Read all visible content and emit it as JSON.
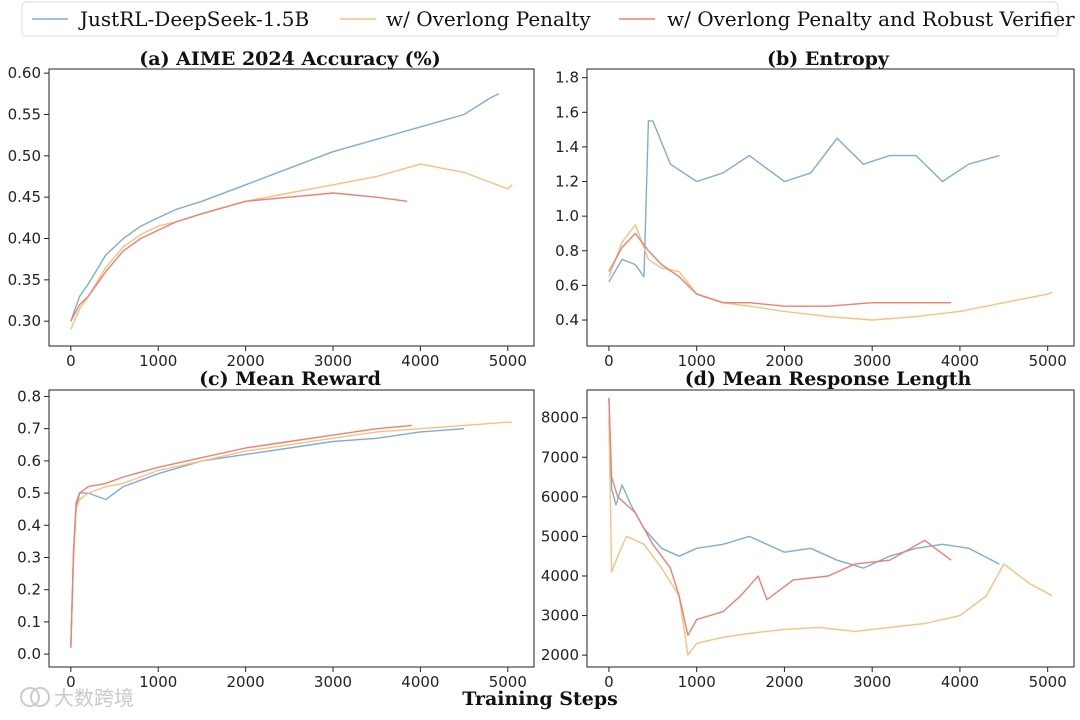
{
  "legend": {
    "items": [
      {
        "label": "JustRL-DeepSeek-1.5B",
        "color": "#7fadd6"
      },
      {
        "label": "w/ Overlong Penalty",
        "color": "#f9c07f"
      },
      {
        "label": "w/ Overlong Penalty and Robust Verifier",
        "color": "#ef7f73"
      }
    ]
  },
  "xlabel": "Training Steps",
  "watermark": "大数跨境",
  "chart_data": [
    {
      "type": "line",
      "title": "(a) AIME 2024 Accuracy (%)",
      "xlim": [
        -250,
        5300
      ],
      "ylim": [
        0.27,
        0.605
      ],
      "xticks": [
        0,
        1000,
        2000,
        3000,
        4000,
        5000
      ],
      "xticklabels": [
        "0",
        "1000",
        "2000",
        "3000",
        "4000",
        "5000"
      ],
      "yticks": [
        0.3,
        0.35,
        0.4,
        0.45,
        0.5,
        0.55,
        0.6
      ],
      "yticklabels": [
        "0.30",
        "0.35",
        "0.40",
        "0.45",
        "0.50",
        "0.55",
        "0.60"
      ],
      "series": [
        {
          "name": "JustRL-DeepSeek-1.5B",
          "x": [
            0,
            100,
            200,
            400,
            600,
            800,
            1000,
            1200,
            1500,
            2000,
            2500,
            3000,
            3500,
            4000,
            4500,
            4800,
            4900
          ],
          "y": [
            0.3,
            0.33,
            0.345,
            0.38,
            0.4,
            0.415,
            0.425,
            0.435,
            0.445,
            0.465,
            0.485,
            0.505,
            0.52,
            0.535,
            0.55,
            0.57,
            0.575
          ]
        },
        {
          "name": "w/ Overlong Penalty",
          "x": [
            0,
            100,
            200,
            400,
            600,
            800,
            1000,
            1200,
            1500,
            2000,
            2500,
            3000,
            3500,
            4000,
            4500,
            5000,
            5050
          ],
          "y": [
            0.29,
            0.315,
            0.33,
            0.365,
            0.39,
            0.405,
            0.415,
            0.42,
            0.43,
            0.445,
            0.455,
            0.465,
            0.475,
            0.49,
            0.48,
            0.46,
            0.465
          ]
        },
        {
          "name": "w/ Overlong Penalty and Robust Verifier",
          "x": [
            0,
            100,
            200,
            400,
            600,
            800,
            1000,
            1200,
            1500,
            2000,
            2500,
            3000,
            3500,
            3850
          ],
          "y": [
            0.3,
            0.32,
            0.33,
            0.36,
            0.385,
            0.4,
            0.41,
            0.42,
            0.43,
            0.445,
            0.45,
            0.455,
            0.45,
            0.445
          ]
        }
      ]
    },
    {
      "type": "line",
      "title": "(b) Entropy",
      "xlim": [
        -250,
        5300
      ],
      "ylim": [
        0.25,
        1.85
      ],
      "xticks": [
        0,
        1000,
        2000,
        3000,
        4000,
        5000
      ],
      "xticklabels": [
        "0",
        "1000",
        "2000",
        "3000",
        "4000",
        "5000"
      ],
      "yticks": [
        0.4,
        0.6,
        0.8,
        1.0,
        1.2,
        1.4,
        1.6,
        1.8
      ],
      "yticklabels": [
        "0.4",
        "0.6",
        "0.8",
        "1.0",
        "1.2",
        "1.4",
        "1.6",
        "1.8"
      ],
      "series": [
        {
          "name": "JustRL-DeepSeek-1.5B",
          "x": [
            0,
            150,
            300,
            400,
            450,
            500,
            700,
            1000,
            1300,
            1600,
            2000,
            2300,
            2600,
            2900,
            3200,
            3500,
            3800,
            4100,
            4450
          ],
          "y": [
            0.62,
            0.75,
            0.72,
            0.65,
            1.55,
            1.55,
            1.3,
            1.2,
            1.25,
            1.35,
            1.2,
            1.25,
            1.45,
            1.3,
            1.35,
            1.35,
            1.2,
            1.3,
            1.35
          ]
        },
        {
          "name": "w/ Overlong Penalty",
          "x": [
            0,
            150,
            300,
            450,
            600,
            800,
            1000,
            1300,
            1600,
            2000,
            2500,
            3000,
            3500,
            4000,
            4500,
            5000,
            5050
          ],
          "y": [
            0.65,
            0.85,
            0.95,
            0.75,
            0.7,
            0.68,
            0.55,
            0.5,
            0.48,
            0.45,
            0.42,
            0.4,
            0.42,
            0.45,
            0.5,
            0.55,
            0.56
          ]
        },
        {
          "name": "w/ Overlong Penalty and Robust Verifier",
          "x": [
            0,
            150,
            300,
            450,
            600,
            800,
            1000,
            1300,
            1600,
            2000,
            2500,
            3000,
            3500,
            3900
          ],
          "y": [
            0.68,
            0.82,
            0.9,
            0.8,
            0.72,
            0.65,
            0.55,
            0.5,
            0.5,
            0.48,
            0.48,
            0.5,
            0.5,
            0.5
          ]
        }
      ]
    },
    {
      "type": "line",
      "title": "(c) Mean Reward",
      "xlim": [
        -250,
        5300
      ],
      "ylim": [
        -0.04,
        0.82
      ],
      "xticks": [
        0,
        1000,
        2000,
        3000,
        4000,
        5000
      ],
      "xticklabels": [
        "0",
        "1000",
        "2000",
        "3000",
        "4000",
        "5000"
      ],
      "yticks": [
        0.0,
        0.1,
        0.2,
        0.3,
        0.4,
        0.5,
        0.6,
        0.7,
        0.8
      ],
      "yticklabels": [
        "0.0",
        "0.1",
        "0.2",
        "0.3",
        "0.4",
        "0.5",
        "0.6",
        "0.7",
        "0.8"
      ],
      "series": [
        {
          "name": "JustRL-DeepSeek-1.5B",
          "x": [
            0,
            30,
            60,
            100,
            200,
            400,
            600,
            1000,
            1500,
            2000,
            2500,
            3000,
            3500,
            4000,
            4500
          ],
          "y": [
            0.02,
            0.3,
            0.45,
            0.5,
            0.5,
            0.48,
            0.52,
            0.56,
            0.6,
            0.62,
            0.64,
            0.66,
            0.67,
            0.69,
            0.7
          ]
        },
        {
          "name": "w/ Overlong Penalty",
          "x": [
            0,
            30,
            60,
            100,
            200,
            400,
            600,
            1000,
            1500,
            2000,
            2500,
            3000,
            3500,
            4000,
            4500,
            5000,
            5050
          ],
          "y": [
            0.02,
            0.3,
            0.45,
            0.48,
            0.5,
            0.52,
            0.53,
            0.57,
            0.6,
            0.63,
            0.65,
            0.67,
            0.69,
            0.7,
            0.71,
            0.72,
            0.72
          ]
        },
        {
          "name": "w/ Overlong Penalty and Robust Verifier",
          "x": [
            0,
            30,
            60,
            100,
            200,
            400,
            600,
            1000,
            1500,
            2000,
            2500,
            3000,
            3500,
            3900
          ],
          "y": [
            0.02,
            0.32,
            0.47,
            0.5,
            0.52,
            0.53,
            0.55,
            0.58,
            0.61,
            0.64,
            0.66,
            0.68,
            0.7,
            0.71
          ]
        }
      ]
    },
    {
      "type": "line",
      "title": "(d) Mean Response Length",
      "xlim": [
        -250,
        5300
      ],
      "ylim": [
        1700,
        8700
      ],
      "xticks": [
        0,
        1000,
        2000,
        3000,
        4000,
        5000
      ],
      "xticklabels": [
        "0",
        "1000",
        "2000",
        "3000",
        "4000",
        "5000"
      ],
      "yticks": [
        2000,
        3000,
        4000,
        5000,
        6000,
        7000,
        8000
      ],
      "yticklabels": [
        "2000",
        "3000",
        "4000",
        "5000",
        "6000",
        "7000",
        "8000"
      ],
      "series": [
        {
          "name": "JustRL-DeepSeek-1.5B",
          "x": [
            0,
            30,
            80,
            150,
            250,
            400,
            600,
            800,
            1000,
            1300,
            1600,
            2000,
            2300,
            2600,
            2900,
            3200,
            3500,
            3800,
            4100,
            4450
          ],
          "y": [
            8500,
            6200,
            5800,
            6300,
            5800,
            5200,
            4700,
            4500,
            4700,
            4800,
            5000,
            4600,
            4700,
            4400,
            4200,
            4500,
            4700,
            4800,
            4700,
            4300
          ]
        },
        {
          "name": "w/ Overlong Penalty",
          "x": [
            0,
            30,
            100,
            200,
            400,
            600,
            800,
            900,
            1000,
            1300,
            1600,
            2000,
            2400,
            2800,
            3200,
            3600,
            4000,
            4300,
            4500,
            4800,
            5050
          ],
          "y": [
            8000,
            4100,
            4500,
            5000,
            4800,
            4200,
            3500,
            2000,
            2300,
            2450,
            2550,
            2650,
            2700,
            2600,
            2700,
            2800,
            3000,
            3500,
            4300,
            3800,
            3500
          ]
        },
        {
          "name": "w/ Overlong Penalty and Robust Verifier",
          "x": [
            0,
            30,
            100,
            200,
            300,
            500,
            700,
            800,
            900,
            1000,
            1300,
            1500,
            1700,
            1800,
            2100,
            2500,
            2800,
            3200,
            3600,
            3900
          ],
          "y": [
            8500,
            6500,
            6000,
            5800,
            5600,
            4800,
            4200,
            3500,
            2500,
            2900,
            3100,
            3500,
            4000,
            3400,
            3900,
            4000,
            4300,
            4400,
            4900,
            4400
          ]
        }
      ]
    }
  ]
}
